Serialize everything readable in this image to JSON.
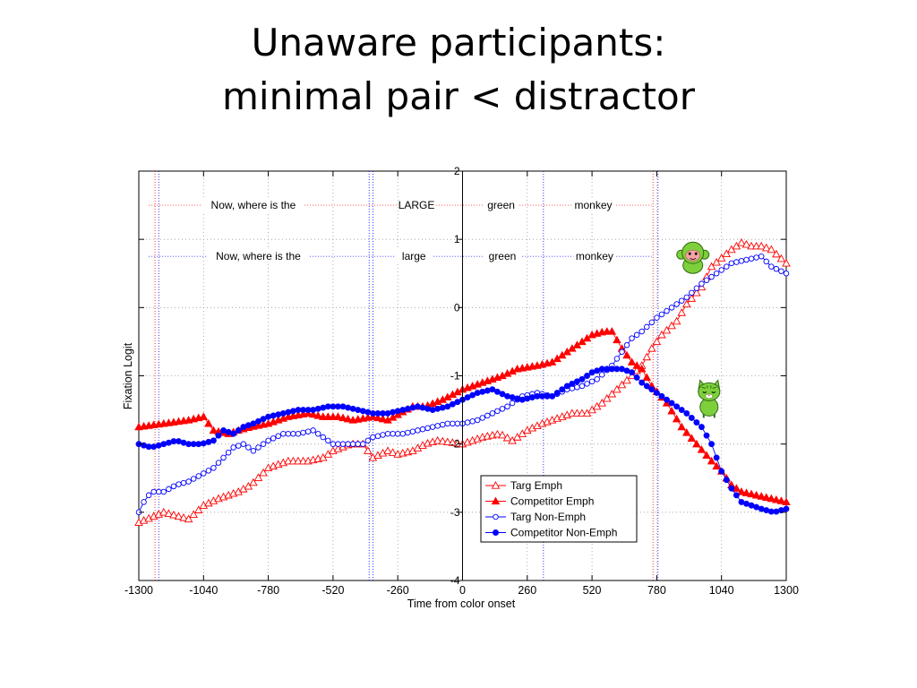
{
  "slide": {
    "title_line1": "Unaware participants:",
    "title_line2": "minimal pair < distractor"
  },
  "chart_data": {
    "type": "line",
    "xlabel": "Time from color onset",
    "ylabel": "Fixation Logit",
    "xlim": [
      -1300,
      1300
    ],
    "ylim": [
      -4,
      2
    ],
    "xticks": [
      -1300,
      -1040,
      -780,
      -520,
      -260,
      0,
      260,
      520,
      780,
      1040,
      1300
    ],
    "yticks": [
      2,
      1,
      0,
      -1,
      -2,
      -3,
      -4
    ],
    "grid": true,
    "legend_position": "lower-center",
    "emph_color": "#ff0000",
    "nonemph_color": "#0000ff",
    "annotations": {
      "emph_row": {
        "y": 1.5,
        "words": [
          {
            "text": "Now, where is the",
            "x": -840
          },
          {
            "text": "LARGE",
            "x": -185
          },
          {
            "text": "green",
            "x": 155
          },
          {
            "text": "monkey",
            "x": 525
          }
        ]
      },
      "nonemph_row": {
        "y": 0.75,
        "words": [
          {
            "text": "Now, where is the",
            "x": -820
          },
          {
            "text": "large",
            "x": -195
          },
          {
            "text": "green",
            "x": 160
          },
          {
            "text": "monkey",
            "x": 530
          }
        ]
      },
      "onset_lines": [
        {
          "x": -1235,
          "color": "#ff0000"
        },
        {
          "x": -1220,
          "color": "#0000ff"
        },
        {
          "x": -375,
          "color": "#0000ff"
        },
        {
          "x": -360,
          "color": "#0000ff"
        },
        {
          "x": 325,
          "color": "#0000ff"
        },
        {
          "x": 765,
          "color": "#ff0000"
        },
        {
          "x": 785,
          "color": "#0000ff"
        }
      ],
      "pictures": [
        {
          "icon": "monkey-icon",
          "x": 925,
          "y": 0.75
        },
        {
          "icon": "cat-icon",
          "x": 990,
          "y": -1.3
        }
      ]
    },
    "series": [
      {
        "name": "Targ Emph",
        "color": "#ff0000",
        "marker": "triangle-open",
        "x": [
          -1300,
          -1200,
          -1100,
          -1040,
          -980,
          -900,
          -850,
          -780,
          -700,
          -620,
          -560,
          -520,
          -450,
          -400,
          -360,
          -300,
          -260,
          -200,
          -150,
          -100,
          0,
          80,
          150,
          200,
          260,
          320,
          400,
          440,
          500,
          560,
          620,
          680,
          720,
          760,
          800,
          860,
          900,
          960,
          1000,
          1080,
          1120,
          1160,
          1200,
          1240,
          1270,
          1300
        ],
        "y": [
          -3.15,
          -3.0,
          -3.1,
          -2.9,
          -2.8,
          -2.7,
          -2.6,
          -2.35,
          -2.25,
          -2.25,
          -2.2,
          -2.1,
          -2.0,
          -2.0,
          -2.2,
          -2.1,
          -2.15,
          -2.1,
          -2.0,
          -1.95,
          -2.0,
          -1.9,
          -1.85,
          -1.95,
          -1.8,
          -1.7,
          -1.6,
          -1.55,
          -1.55,
          -1.4,
          -1.2,
          -1.0,
          -0.85,
          -0.6,
          -0.4,
          -0.2,
          0.05,
          0.3,
          0.6,
          0.85,
          0.95,
          0.9,
          0.9,
          0.85,
          0.75,
          0.65
        ]
      },
      {
        "name": "Competitor Emph",
        "color": "#ff0000",
        "marker": "triangle-filled",
        "x": [
          -1300,
          -1200,
          -1100,
          -1040,
          -1000,
          -940,
          -900,
          -850,
          -780,
          -700,
          -620,
          -560,
          -500,
          -440,
          -360,
          -300,
          -250,
          -200,
          -150,
          -80,
          0,
          80,
          160,
          220,
          300,
          360,
          420,
          480,
          520,
          570,
          600,
          640,
          680,
          720,
          760,
          820,
          880,
          940,
          1000,
          1040,
          1080,
          1120,
          1180,
          1240,
          1300
        ],
        "y": [
          -1.75,
          -1.7,
          -1.65,
          -1.6,
          -1.8,
          -1.85,
          -1.8,
          -1.75,
          -1.7,
          -1.6,
          -1.55,
          -1.6,
          -1.6,
          -1.65,
          -1.6,
          -1.65,
          -1.55,
          -1.45,
          -1.45,
          -1.35,
          -1.2,
          -1.1,
          -1.0,
          -0.9,
          -0.85,
          -0.8,
          -0.65,
          -0.5,
          -0.4,
          -0.35,
          -0.35,
          -0.6,
          -0.8,
          -0.9,
          -1.15,
          -1.4,
          -1.75,
          -2.0,
          -2.25,
          -2.4,
          -2.6,
          -2.7,
          -2.75,
          -2.8,
          -2.85
        ]
      },
      {
        "name": "Targ Non-Emph",
        "color": "#0000ff",
        "marker": "circle-open",
        "x": [
          -1300,
          -1280,
          -1250,
          -1200,
          -1150,
          -1100,
          -1050,
          -1000,
          -960,
          -920,
          -880,
          -840,
          -780,
          -720,
          -660,
          -600,
          -560,
          -520,
          -460,
          -400,
          -360,
          -300,
          -240,
          -180,
          -120,
          -60,
          0,
          60,
          120,
          180,
          240,
          300,
          360,
          420,
          480,
          540,
          600,
          640,
          680,
          720,
          780,
          840,
          900,
          960,
          1020,
          1080,
          1140,
          1200,
          1240,
          1300
        ],
        "y": [
          -3.0,
          -2.85,
          -2.7,
          -2.7,
          -2.6,
          -2.55,
          -2.45,
          -2.35,
          -2.2,
          -2.05,
          -2.0,
          -2.1,
          -1.95,
          -1.85,
          -1.85,
          -1.8,
          -1.9,
          -2.0,
          -2.0,
          -2.0,
          -1.9,
          -1.85,
          -1.85,
          -1.8,
          -1.75,
          -1.7,
          -1.7,
          -1.65,
          -1.55,
          -1.45,
          -1.3,
          -1.25,
          -1.3,
          -1.2,
          -1.15,
          -1.05,
          -0.85,
          -0.65,
          -0.45,
          -0.35,
          -0.15,
          0.0,
          0.15,
          0.35,
          0.5,
          0.65,
          0.7,
          0.75,
          0.6,
          0.5
        ]
      },
      {
        "name": "Competitor Non-Emph",
        "color": "#0000ff",
        "marker": "circle-filled",
        "x": [
          -1300,
          -1250,
          -1200,
          -1150,
          -1100,
          -1050,
          -1000,
          -960,
          -920,
          -880,
          -840,
          -780,
          -720,
          -660,
          -600,
          -540,
          -480,
          -420,
          -360,
          -300,
          -240,
          -180,
          -120,
          -60,
          0,
          60,
          120,
          180,
          240,
          300,
          360,
          420,
          480,
          520,
          560,
          600,
          640,
          680,
          720,
          780,
          840,
          900,
          960,
          1000,
          1040,
          1080,
          1120,
          1160,
          1200,
          1250,
          1300
        ],
        "y": [
          -2.0,
          -2.05,
          -2.0,
          -1.95,
          -2.0,
          -2.0,
          -1.95,
          -1.8,
          -1.85,
          -1.75,
          -1.7,
          -1.6,
          -1.55,
          -1.5,
          -1.5,
          -1.45,
          -1.45,
          -1.5,
          -1.55,
          -1.55,
          -1.5,
          -1.45,
          -1.5,
          -1.45,
          -1.35,
          -1.25,
          -1.2,
          -1.3,
          -1.35,
          -1.3,
          -1.3,
          -1.15,
          -1.05,
          -0.95,
          -0.9,
          -0.9,
          -0.9,
          -0.95,
          -1.1,
          -1.25,
          -1.4,
          -1.55,
          -1.75,
          -2.0,
          -2.4,
          -2.65,
          -2.85,
          -2.9,
          -2.95,
          -3.0,
          -2.95
        ]
      }
    ]
  }
}
